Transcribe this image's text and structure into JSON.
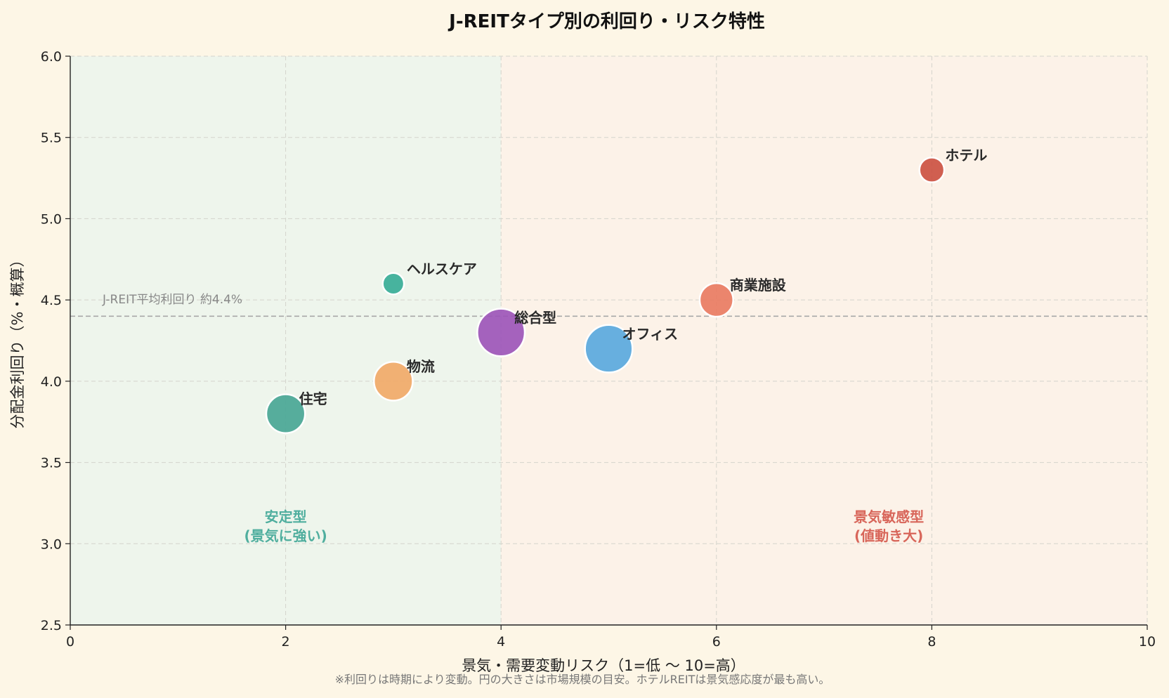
{
  "chart_data": {
    "type": "scatter",
    "title": "J-REITタイプ別の利回り・リスク特性",
    "xlabel": "景気・需要変動リスク（1=低 〜 10=高）",
    "ylabel": "分配金利回り（%・概算）",
    "xlim": [
      0,
      10
    ],
    "ylim": [
      2.5,
      6.0
    ],
    "xticks": [
      "0",
      "2",
      "4",
      "6",
      "8",
      "10"
    ],
    "yticks": [
      "2.5",
      "3.0",
      "3.5",
      "4.0",
      "4.5",
      "5.0",
      "5.5",
      "6.0"
    ],
    "grid": true,
    "points": [
      {
        "label": "住宅",
        "x": 2,
        "y": 3.8,
        "size": 3,
        "color": "#45a594"
      },
      {
        "label": "物流",
        "x": 3,
        "y": 4.0,
        "size": 3,
        "color": "#f1a866"
      },
      {
        "label": "ヘルスケア",
        "x": 3,
        "y": 4.6,
        "size": 1,
        "color": "#34ac96"
      },
      {
        "label": "総合型",
        "x": 4,
        "y": 4.3,
        "size": 4,
        "color": "#9b52b8"
      },
      {
        "label": "オフィス",
        "x": 5,
        "y": 4.2,
        "size": 4,
        "color": "#56a7de"
      },
      {
        "label": "商業施設",
        "x": 6,
        "y": 4.5,
        "size": 2.4,
        "color": "#e9795f"
      },
      {
        "label": "ホテル",
        "x": 8,
        "y": 5.3,
        "size": 1.4,
        "color": "#cb4f3f"
      }
    ],
    "reference_line": {
      "y": 4.4,
      "label": "J-REIT平均利回り 約4.4%"
    },
    "zones": [
      {
        "x_from": 0,
        "x_to": 4,
        "color": "#eef5ec",
        "label_line1": "安定型",
        "label_line2": "(景気に強い)",
        "label_color": "#4fae9e",
        "label_x": 2,
        "label_y": 3.1
      },
      {
        "x_from": 4,
        "x_to": 10,
        "color": "#fcf2e8",
        "label_line1": "景気敏感型",
        "label_line2": "(値動き大)",
        "label_color": "#d8665a",
        "label_x": 7.6,
        "label_y": 3.1
      }
    ],
    "footnote": "※利回りは時期により変動。円の大きさは市場規模の目安。ホテルREITは景気感応度が最も高い。"
  }
}
